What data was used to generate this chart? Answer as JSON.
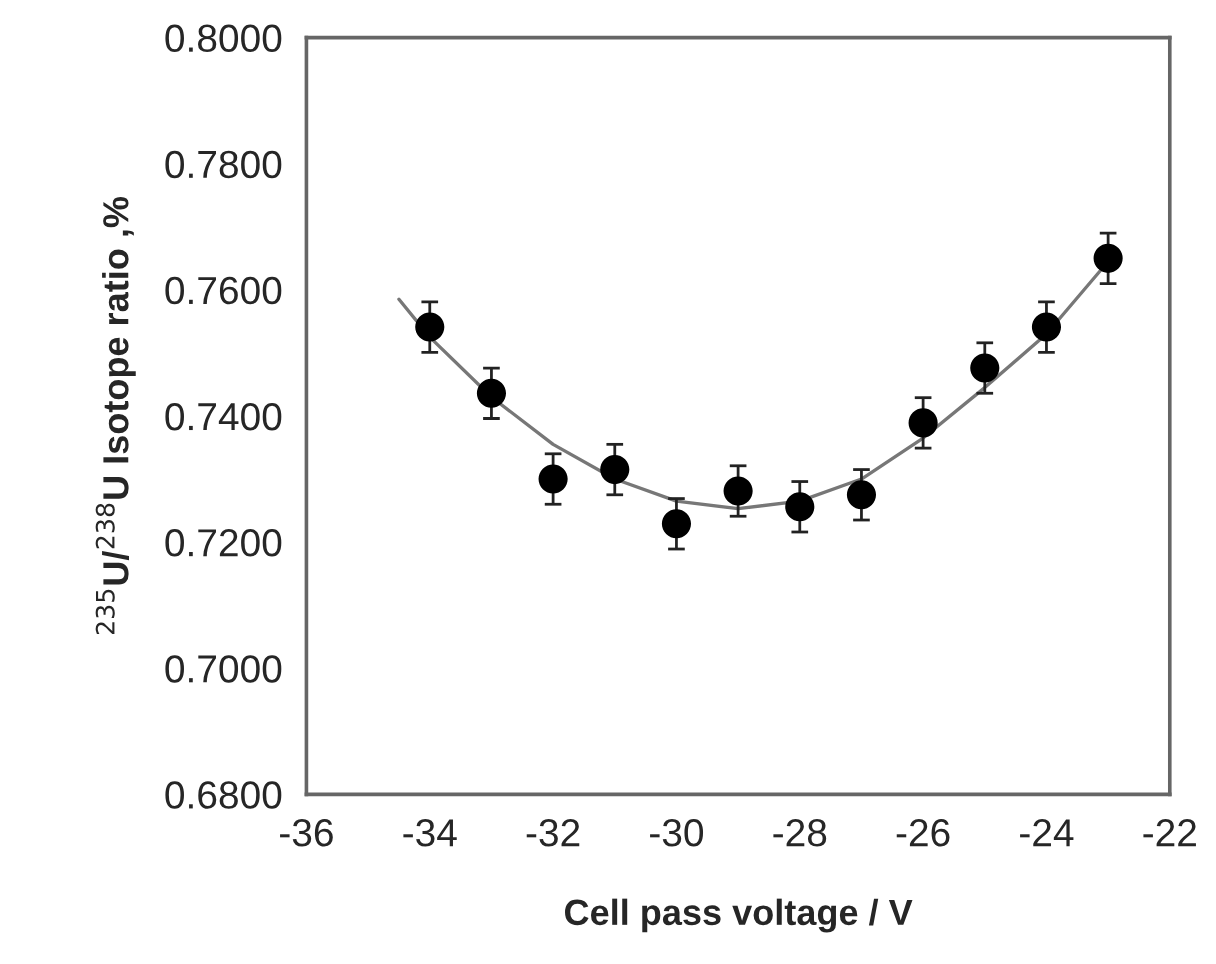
{
  "chart_data": {
    "type": "scatter",
    "xlabel": "Cell pass voltage / V",
    "ylabel": "$^{235}$U/$^{238}$U Isotope ratio ,%",
    "xlim": [
      -36,
      -22
    ],
    "xticks": [
      -36,
      -34,
      -32,
      -30,
      -28,
      -26,
      -24,
      -22
    ],
    "ylim": [
      0.68,
      0.8
    ],
    "yticks": [
      {
        "value": 0.68,
        "label": "0.6800"
      },
      {
        "value": 0.7,
        "label": "0.7000"
      },
      {
        "value": 0.72,
        "label": "0.7200"
      },
      {
        "value": 0.74,
        "label": "0.7400"
      },
      {
        "value": 0.76,
        "label": "0.7600"
      },
      {
        "value": 0.78,
        "label": "0.7800"
      },
      {
        "value": 0.8,
        "label": "0.8000"
      }
    ],
    "grid": false,
    "legend": false,
    "series": [
      {
        "color": "#000000",
        "marker": "circle",
        "x": [
          -34,
          -33,
          -32,
          -31,
          -30,
          -29,
          -28,
          -27,
          -26,
          -25,
          -24,
          -23
        ],
        "values": [
          0.7541,
          0.7436,
          0.73,
          0.7315,
          0.7229,
          0.7281,
          0.7256,
          0.7275,
          0.7389,
          0.7476,
          0.7541,
          0.765
        ],
        "errors": [
          0.004,
          0.004,
          0.004,
          0.004,
          0.004,
          0.004,
          0.004,
          0.004,
          0.004,
          0.004,
          0.004,
          0.004
        ]
      },
      {
        "type": "line",
        "color": "#777777",
        "marker": "none",
        "line_style": "solid",
        "x": [
          -34.5,
          -34,
          -33,
          -32,
          -31,
          -30,
          -29,
          -28,
          -27,
          -26,
          -25,
          -24,
          -23
        ],
        "values": [
          0.7585,
          0.7525,
          0.743,
          0.7355,
          0.73,
          0.7265,
          0.7253,
          0.7265,
          0.73,
          0.7365,
          0.7445,
          0.753,
          0.7645
        ]
      }
    ]
  }
}
